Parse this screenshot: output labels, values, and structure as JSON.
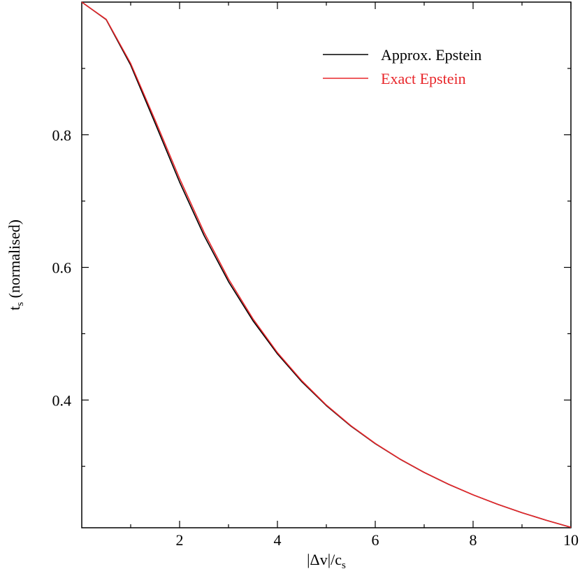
{
  "chart_data": {
    "type": "line",
    "x_label": {
      "main": "|Δv|/c",
      "sub": "s"
    },
    "y_label": {
      "main": "t",
      "sub": "s",
      "rest": " (normalised)"
    },
    "x": [
      0,
      0.5,
      1,
      1.5,
      2,
      2.5,
      3,
      3.5,
      4,
      4.5,
      5,
      5.5,
      6,
      6.5,
      7,
      7.5,
      8,
      8.5,
      9,
      9.5,
      10
    ],
    "series": [
      {
        "name": "Approx. Epstein",
        "color": "#000000",
        "values": [
          1,
          0.9735,
          0.905,
          0.8173,
          0.7286,
          0.6481,
          0.5785,
          0.5195,
          0.4696,
          0.4275,
          0.3916,
          0.3608,
          0.3342,
          0.3111,
          0.2908,
          0.2729,
          0.257,
          0.2428,
          0.2301,
          0.2186,
          0.2081
        ]
      },
      {
        "name": "Exact Epstein",
        "color": "#e8262a",
        "values": [
          1,
          0.974,
          0.9075,
          0.822,
          0.734,
          0.653,
          0.5825,
          0.5225,
          0.4715,
          0.429,
          0.3925,
          0.3614,
          0.3346,
          0.3113,
          0.2909,
          0.273,
          0.2571,
          0.2429,
          0.2301,
          0.2186,
          0.2081
        ]
      }
    ],
    "xlim": [
      0,
      10
    ],
    "xticks": [
      2,
      4,
      6,
      8,
      10
    ],
    "xminor": [
      1,
      3,
      5,
      7,
      9
    ],
    "ylim": [
      0.2074,
      1.0
    ],
    "yticks": [
      0.4,
      0.6,
      0.8
    ],
    "yminor": [
      0.3,
      0.5,
      0.7,
      0.9
    ],
    "grid": false,
    "legend": "upper right"
  }
}
